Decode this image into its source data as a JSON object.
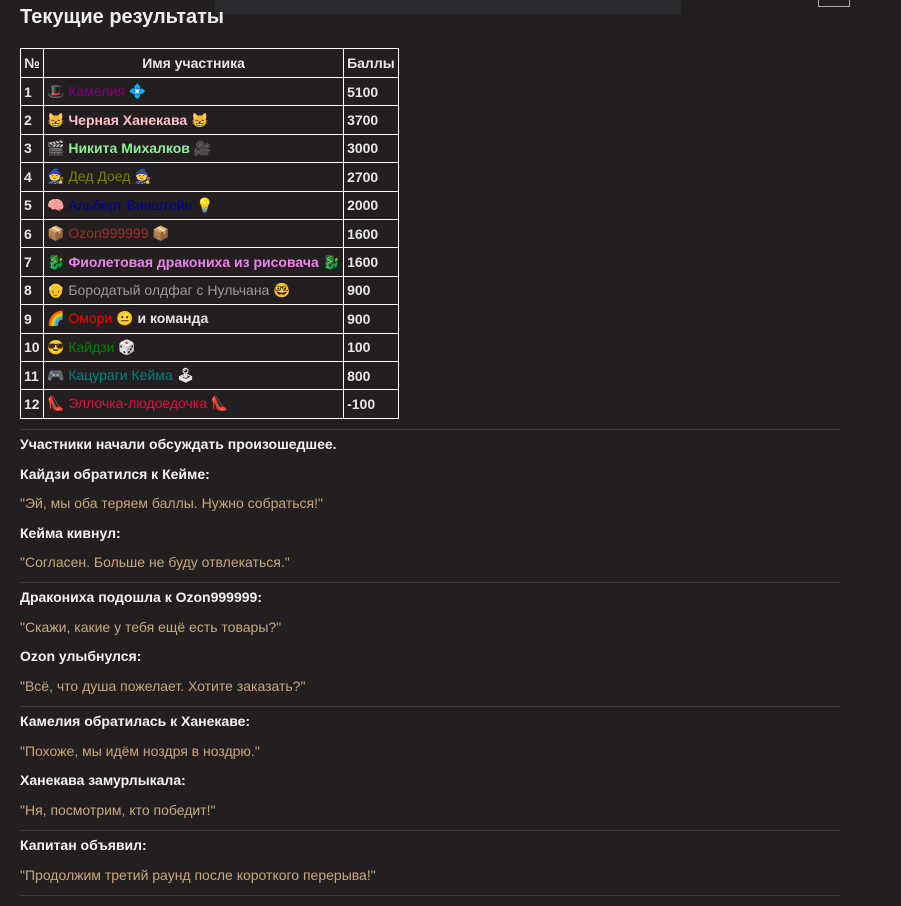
{
  "title": "Текущие результаты",
  "table": {
    "headers": [
      "№",
      "Имя участника",
      "Баллы"
    ],
    "rows": [
      {
        "rank": 1,
        "icon": "🎩",
        "name": "Камелия",
        "trail": "💠",
        "color": "#800080",
        "score": 5100
      },
      {
        "rank": 2,
        "icon": "😸",
        "name": "Черная Ханекава",
        "trail": "😸",
        "color": "#ffc0cb",
        "bold": true,
        "score": 3700
      },
      {
        "rank": 3,
        "icon": "🎬",
        "name": "Никита Михалков",
        "trail": "🎥",
        "color": "#90ee90",
        "bold": true,
        "score": 3000
      },
      {
        "rank": 4,
        "icon": "🧙",
        "name": "Дед Доед",
        "trail": "🧙",
        "color": "#808000",
        "score": 2700
      },
      {
        "rank": 5,
        "icon": "🧠",
        "name": "Альберт Винштейн",
        "trail": "💡",
        "color": "#00008b",
        "score": 2000
      },
      {
        "rank": 6,
        "icon": "📦",
        "name": "Ozon999999",
        "trail": "📦",
        "color": "#a52a2a",
        "score": 1600
      },
      {
        "rank": 7,
        "icon": "🐉",
        "name": "Фиолетовая дракониха из рисовача",
        "trail": "🐉",
        "color": "#ee82ee",
        "bold": true,
        "score": 1600
      },
      {
        "rank": 8,
        "icon": "👴",
        "name": "Бородатый олдфаг с Нульчана",
        "trail": "🤓",
        "color": "#999999",
        "score": 900
      },
      {
        "rank": 9,
        "icon": "🌈",
        "name": "Омори",
        "trail": "😐",
        "suffix": "и команда",
        "color": "#ff0000",
        "score": 900
      },
      {
        "rank": 10,
        "icon": "😎",
        "name": "Кайдзи",
        "trail": "🎲",
        "color": "#008000",
        "score": 100
      },
      {
        "rank": 11,
        "icon": "🎮",
        "name": "Кацураги Кейма",
        "trail": "🕹",
        "color": "#008080",
        "score": 800
      },
      {
        "rank": 12,
        "icon": "👠",
        "name": "Эллочка-людоедочка",
        "trail": "👠",
        "color": "#dc143c",
        "score": -100
      }
    ]
  },
  "dialogue": [
    [
      {
        "kind": "speaker",
        "text": "Участники начали обсуждать произошедшее."
      },
      {
        "kind": "speaker",
        "text": "Кайдзи обратился к Кейме:"
      },
      {
        "kind": "quote",
        "text": "\"Эй, мы оба теряем баллы. Нужно собраться!\""
      },
      {
        "kind": "speaker",
        "text": "Кейма кивнул:"
      },
      {
        "kind": "quote",
        "text": "\"Согласен. Больше не буду отвлекаться.\""
      }
    ],
    [
      {
        "kind": "speaker",
        "text": "Дракониха подошла к Ozon999999:"
      },
      {
        "kind": "quote",
        "text": "\"Скажи, какие у тебя ещё есть товары?\""
      },
      {
        "kind": "speaker",
        "text": "Ozon улыбнулся:"
      },
      {
        "kind": "quote",
        "text": "\"Всё, что душа пожелает. Хотите заказать?\""
      }
    ],
    [
      {
        "kind": "speaker",
        "text": "Камелия обратилась к Ханекаве:"
      },
      {
        "kind": "quote",
        "text": "\"Похоже, мы идём ноздря в ноздрю.\""
      },
      {
        "kind": "speaker",
        "text": "Ханекава замурлыкала:"
      },
      {
        "kind": "quote",
        "text": "\"Ня, посмотрим, кто победит!\""
      }
    ],
    [
      {
        "kind": "speaker",
        "text": "Капитан объявил:"
      },
      {
        "kind": "quote",
        "text": "\"Продолжим третий раунд после короткого перерыва!\""
      }
    ]
  ]
}
